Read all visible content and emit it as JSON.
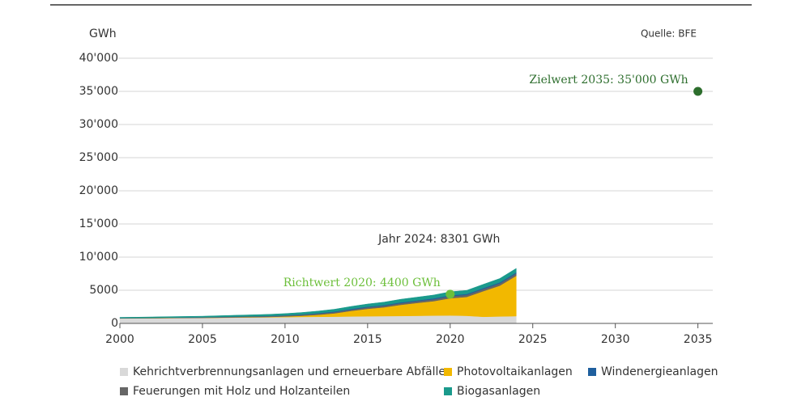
{
  "chart_data": {
    "type": "stacked-area",
    "y_axis_label": "GWh",
    "source": "Quelle: BFE",
    "x": [
      2000,
      2001,
      2002,
      2003,
      2004,
      2005,
      2006,
      2007,
      2008,
      2009,
      2010,
      2011,
      2012,
      2013,
      2014,
      2015,
      2016,
      2017,
      2018,
      2019,
      2020,
      2021,
      2022,
      2023,
      2024
    ],
    "series": [
      {
        "name": "Kehrichtverbrennungsanlagen und erneuerbare Abfälle",
        "color": "#d9d9d9",
        "values": [
          750,
          760,
          780,
          800,
          810,
          820,
          850,
          880,
          900,
          920,
          950,
          980,
          1000,
          1020,
          1050,
          1080,
          1100,
          1120,
          1150,
          1180,
          1200,
          1150,
          1000,
          1050,
          1100
        ]
      },
      {
        "name": "Photovoltaikanlagen",
        "color": "#f2b800",
        "values": [
          10,
          12,
          14,
          16,
          18,
          20,
          25,
          30,
          40,
          55,
          95,
          170,
          300,
          500,
          840,
          1120,
          1330,
          1680,
          1940,
          2180,
          2600,
          2840,
          3860,
          4640,
          6080
        ]
      },
      {
        "name": "Feuerungen mit Holz und Holzanteilen",
        "color": "#666666",
        "values": [
          50,
          55,
          60,
          70,
          80,
          90,
          100,
          110,
          120,
          130,
          150,
          160,
          180,
          190,
          200,
          220,
          240,
          250,
          270,
          280,
          300,
          310,
          320,
          340,
          350
        ]
      },
      {
        "name": "Windenergieanlagen",
        "color": "#1f5f9e",
        "values": [
          3,
          3,
          4,
          5,
          6,
          8,
          15,
          20,
          25,
          30,
          37,
          50,
          70,
          90,
          100,
          110,
          110,
          130,
          120,
          145,
          145,
          145,
          150,
          160,
          170
        ]
      },
      {
        "name": "Biogasanlagen",
        "color": "#1a9a8c",
        "values": [
          100,
          110,
          120,
          130,
          140,
          150,
          170,
          190,
          210,
          230,
          250,
          280,
          310,
          340,
          370,
          400,
          430,
          460,
          480,
          500,
          520,
          540,
          560,
          580,
          600
        ]
      }
    ],
    "annotations": [
      {
        "label": "Jahr 2024: 8301 GWh",
        "x": 2024,
        "y": 8301
      },
      {
        "label": "Richtwert 2020: 4400 GWh",
        "x": 2020,
        "y": 4400,
        "color": "#6cbf3a"
      },
      {
        "label": "Zielwert 2035: 35'000 GWh",
        "x": 2035,
        "y": 35000,
        "color": "#2d6e2d"
      }
    ],
    "xlim": [
      2000,
      2036
    ],
    "xticks": [
      2000,
      2005,
      2010,
      2015,
      2020,
      2025,
      2030,
      2035
    ],
    "ylim": [
      0,
      40000
    ],
    "yticks": [
      0,
      5000,
      {
        "value": 10000,
        "label": "10'000"
      },
      {
        "value": 15000,
        "label": "15'000"
      },
      {
        "value": 20000,
        "label": "20'000"
      },
      {
        "value": 25000,
        "label": "25'000"
      },
      {
        "value": 30000,
        "label": "30'000"
      },
      {
        "value": 35000,
        "label": "35'000"
      },
      {
        "value": 40000,
        "label": "40'000"
      }
    ],
    "grid": true
  }
}
